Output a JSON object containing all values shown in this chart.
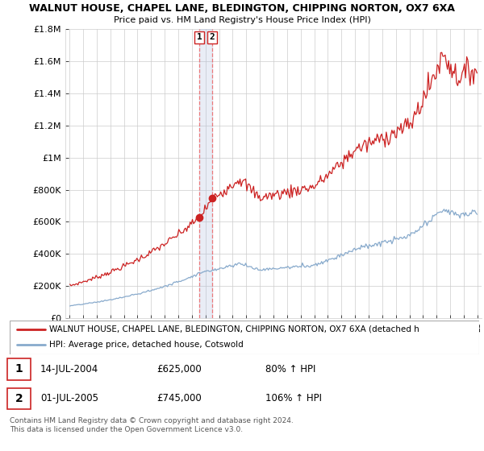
{
  "title1": "WALNUT HOUSE, CHAPEL LANE, BLEDINGTON, CHIPPING NORTON, OX7 6XA",
  "title2": "Price paid vs. HM Land Registry's House Price Index (HPI)",
  "ylabel_ticks": [
    "£0",
    "£200K",
    "£400K",
    "£600K",
    "£800K",
    "£1M",
    "£1.2M",
    "£1.4M",
    "£1.6M",
    "£1.8M"
  ],
  "ytick_vals": [
    0,
    200000,
    400000,
    600000,
    800000,
    1000000,
    1200000,
    1400000,
    1600000,
    1800000
  ],
  "x_start_year": 1995,
  "x_end_year": 2025,
  "red_line_color": "#cc2222",
  "blue_line_color": "#88aacc",
  "dashed_line_color": "#ee6666",
  "shade_color": "#aabbdd",
  "legend_label_red": "WALNUT HOUSE, CHAPEL LANE, BLEDINGTON, CHIPPING NORTON, OX7 6XA (detached h",
  "legend_label_blue": "HPI: Average price, detached house, Cotswold",
  "transaction1_date": "14-JUL-2004",
  "transaction1_price": "£625,000",
  "transaction1_hpi": "80% ↑ HPI",
  "transaction1_year": 2004.54,
  "transaction1_val": 625000,
  "transaction2_date": "01-JUL-2005",
  "transaction2_price": "£745,000",
  "transaction2_hpi": "106% ↑ HPI",
  "transaction2_year": 2005.5,
  "transaction2_val": 745000,
  "footnote1": "Contains HM Land Registry data © Crown copyright and database right 2024.",
  "footnote2": "This data is licensed under the Open Government Licence v3.0.",
  "background_color": "#ffffff",
  "grid_color": "#cccccc"
}
